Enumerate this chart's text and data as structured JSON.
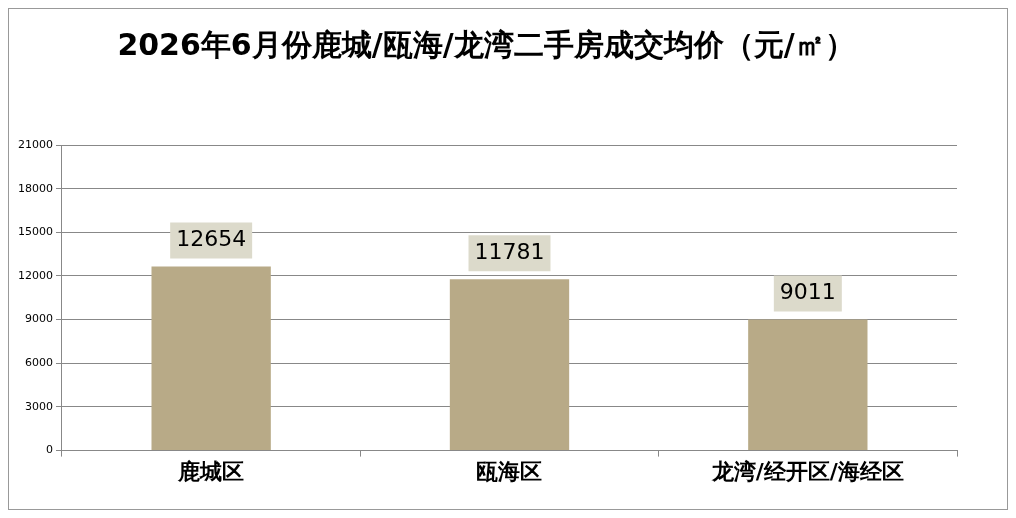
{
  "chart_data": {
    "type": "bar",
    "title": "2026年6月份鹿城/瓯海/龙湾二手房成交均价（元/㎡）",
    "categories": [
      "鹿城区",
      "瓯海区",
      "龙湾/经开区/海经区"
    ],
    "values": [
      12654,
      11781,
      9011
    ],
    "color": "#b8aa87",
    "ylim": [
      0,
      21000
    ],
    "yticks": [
      0,
      3000,
      6000,
      9000,
      12000,
      15000,
      18000,
      21000
    ],
    "grid": "y",
    "legend": false,
    "data_labels": true
  }
}
